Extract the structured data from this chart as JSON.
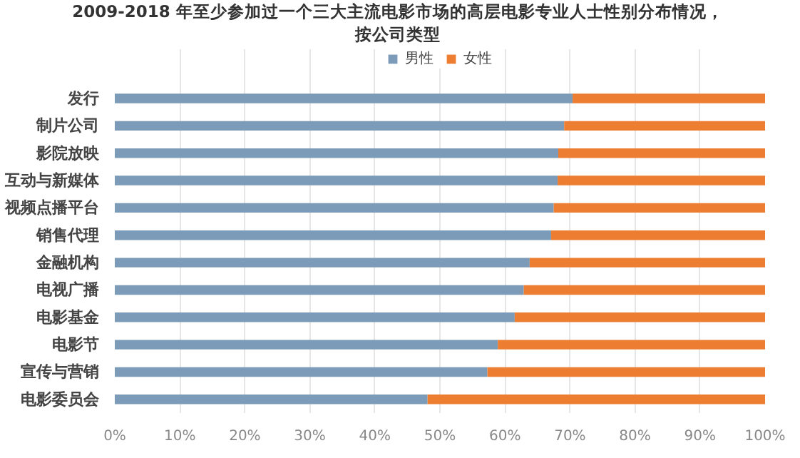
{
  "chart_data": {
    "type": "bar",
    "orientation": "horizontal",
    "stacked": true,
    "title": "2009-2018 年至少参加过一个三大主流电影市场的高层电影专业人士性别分布情况，",
    "subtitle": "按公司类型",
    "categories": [
      "发行",
      "制片公司",
      "影院放映",
      "互动与新媒体",
      "视频点播平台",
      "销售代理",
      "金融机构",
      "电视广播",
      "电影基金",
      "电影节",
      "宣传与营销",
      "电影委员会"
    ],
    "series": [
      {
        "name": "男性",
        "color": "#7b9bb8",
        "values": [
          70.4,
          69.1,
          68.2,
          68.1,
          67.5,
          67.1,
          63.8,
          62.9,
          61.5,
          58.9,
          57.3,
          48.1
        ]
      },
      {
        "name": "女性",
        "color": "#ed7d31",
        "values": [
          29.6,
          30.9,
          31.8,
          31.9,
          32.5,
          32.9,
          36.2,
          37.1,
          38.5,
          41.1,
          42.7,
          51.9
        ]
      }
    ],
    "xlim": [
      0,
      100
    ],
    "xticks": [
      {
        "value": 0,
        "label": "0%"
      },
      {
        "value": 10,
        "label": "10%"
      },
      {
        "value": 20,
        "label": "20%"
      },
      {
        "value": 30,
        "label": "30%"
      },
      {
        "value": 40,
        "label": "40%"
      },
      {
        "value": 50,
        "label": "50%"
      },
      {
        "value": 60,
        "label": "60%"
      },
      {
        "value": 70,
        "label": "70%"
      },
      {
        "value": 80,
        "label": "80%"
      },
      {
        "value": 90,
        "label": "90%"
      },
      {
        "value": 100,
        "label": "100%"
      }
    ],
    "grid": "x",
    "legend": "top"
  }
}
